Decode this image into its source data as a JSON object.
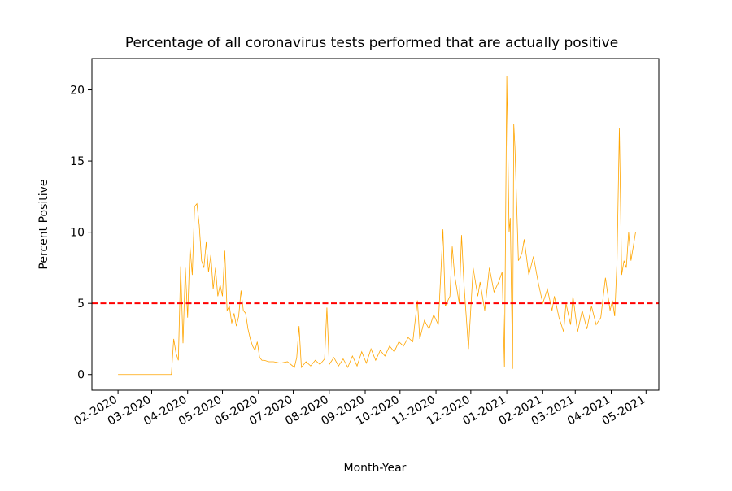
{
  "chart_data": {
    "type": "line",
    "title": "Percentage of all coronavirus tests performed that are actually positive",
    "x_label": "Month-Year",
    "y_label": "Percent Positive",
    "x": [
      0,
      10,
      20,
      30,
      40,
      46,
      48,
      50,
      52,
      54,
      56,
      58,
      60,
      62,
      64,
      66,
      68,
      70,
      72,
      74,
      76,
      78,
      80,
      82,
      84,
      86,
      88,
      90,
      92,
      94,
      96,
      98,
      100,
      102,
      104,
      106,
      108,
      110,
      112,
      114,
      116,
      118,
      120,
      122,
      124,
      126,
      130,
      134,
      140,
      146,
      152,
      154,
      156,
      158,
      162,
      166,
      170,
      174,
      178,
      180,
      182,
      186,
      190,
      194,
      198,
      202,
      206,
      210,
      214,
      218,
      222,
      226,
      230,
      234,
      238,
      242,
      246,
      250,
      254,
      258,
      260,
      264,
      268,
      272,
      276,
      280,
      282,
      286,
      288,
      290,
      294,
      296,
      298,
      302,
      306,
      310,
      312,
      316,
      320,
      324,
      328,
      331,
      333,
      335,
      337,
      338,
      340,
      341,
      342,
      345,
      348,
      350,
      354,
      358,
      362,
      366,
      370,
      374,
      376,
      380,
      384,
      386,
      390,
      392,
      396,
      400,
      404,
      408,
      412,
      416,
      420,
      424,
      426,
      428,
      430,
      432,
      434,
      436,
      438,
      440,
      442,
      444,
      446
    ],
    "series": [
      {
        "color": "#ffa500",
        "values": [
          0,
          0,
          0,
          0,
          0,
          0,
          2.5,
          1.5,
          1.0,
          7.6,
          2.2,
          7.5,
          4,
          9,
          7,
          11.8,
          12,
          10.5,
          8,
          7.5,
          9.3,
          7.2,
          8.4,
          6,
          7.5,
          5.5,
          6.3,
          5.5,
          8.7,
          4.5,
          4.8,
          3.6,
          4.3,
          3.4,
          4.1,
          5.9,
          4.5,
          4.3,
          3.2,
          2.5,
          2,
          1.7,
          2.3,
          1.2,
          1,
          1,
          0.9,
          0.9,
          0.8,
          0.9,
          0.5,
          1.2,
          3.4,
          0.5,
          0.9,
          0.6,
          1,
          0.7,
          1.1,
          4.7,
          0.7,
          1.2,
          0.6,
          1.1,
          0.5,
          1.3,
          0.6,
          1.6,
          0.8,
          1.8,
          1,
          1.7,
          1.3,
          2,
          1.6,
          2.3,
          2,
          2.6,
          2.3,
          5.2,
          2.5,
          3.8,
          3.2,
          4.2,
          3.5,
          10.2,
          4.8,
          5.5,
          9,
          7,
          5,
          9.8,
          6.5,
          1.8,
          7.5,
          5.5,
          6.5,
          4.5,
          7.5,
          5.8,
          6.5,
          7.2,
          0.5,
          21,
          10,
          11,
          0.4,
          17.6,
          16,
          8,
          8.5,
          9.5,
          7,
          8.3,
          6.5,
          5,
          6,
          4.5,
          5.5,
          4,
          3,
          5,
          3.5,
          5.5,
          3,
          4.5,
          3.2,
          4.8,
          3.5,
          4,
          6.8,
          4.5,
          5.2,
          4.1,
          8,
          17.3,
          7,
          8,
          7.5,
          10,
          8,
          9,
          10
        ]
      }
    ],
    "hline": {
      "value": 5,
      "color": "#ff0000"
    },
    "xlim": [
      -22.5,
      466
    ],
    "xticks": [
      {
        "value": 0,
        "label": "02-2020"
      },
      {
        "value": 29,
        "label": "03-2020"
      },
      {
        "value": 60,
        "label": "04-2020"
      },
      {
        "value": 90,
        "label": "05-2020"
      },
      {
        "value": 121,
        "label": "06-2020"
      },
      {
        "value": 151,
        "label": "07-2020"
      },
      {
        "value": 182,
        "label": "08-2020"
      },
      {
        "value": 213,
        "label": "09-2020"
      },
      {
        "value": 243,
        "label": "10-2020"
      },
      {
        "value": 274,
        "label": "11-2020"
      },
      {
        "value": 304,
        "label": "12-2020"
      },
      {
        "value": 335,
        "label": "01-2021"
      },
      {
        "value": 366,
        "label": "02-2021"
      },
      {
        "value": 394,
        "label": "03-2021"
      },
      {
        "value": 425,
        "label": "04-2021"
      },
      {
        "value": 455,
        "label": "05-2021"
      }
    ],
    "ylim": [
      -1.1,
      22.2
    ],
    "yticks": [
      0,
      5,
      10,
      15,
      20
    ]
  }
}
